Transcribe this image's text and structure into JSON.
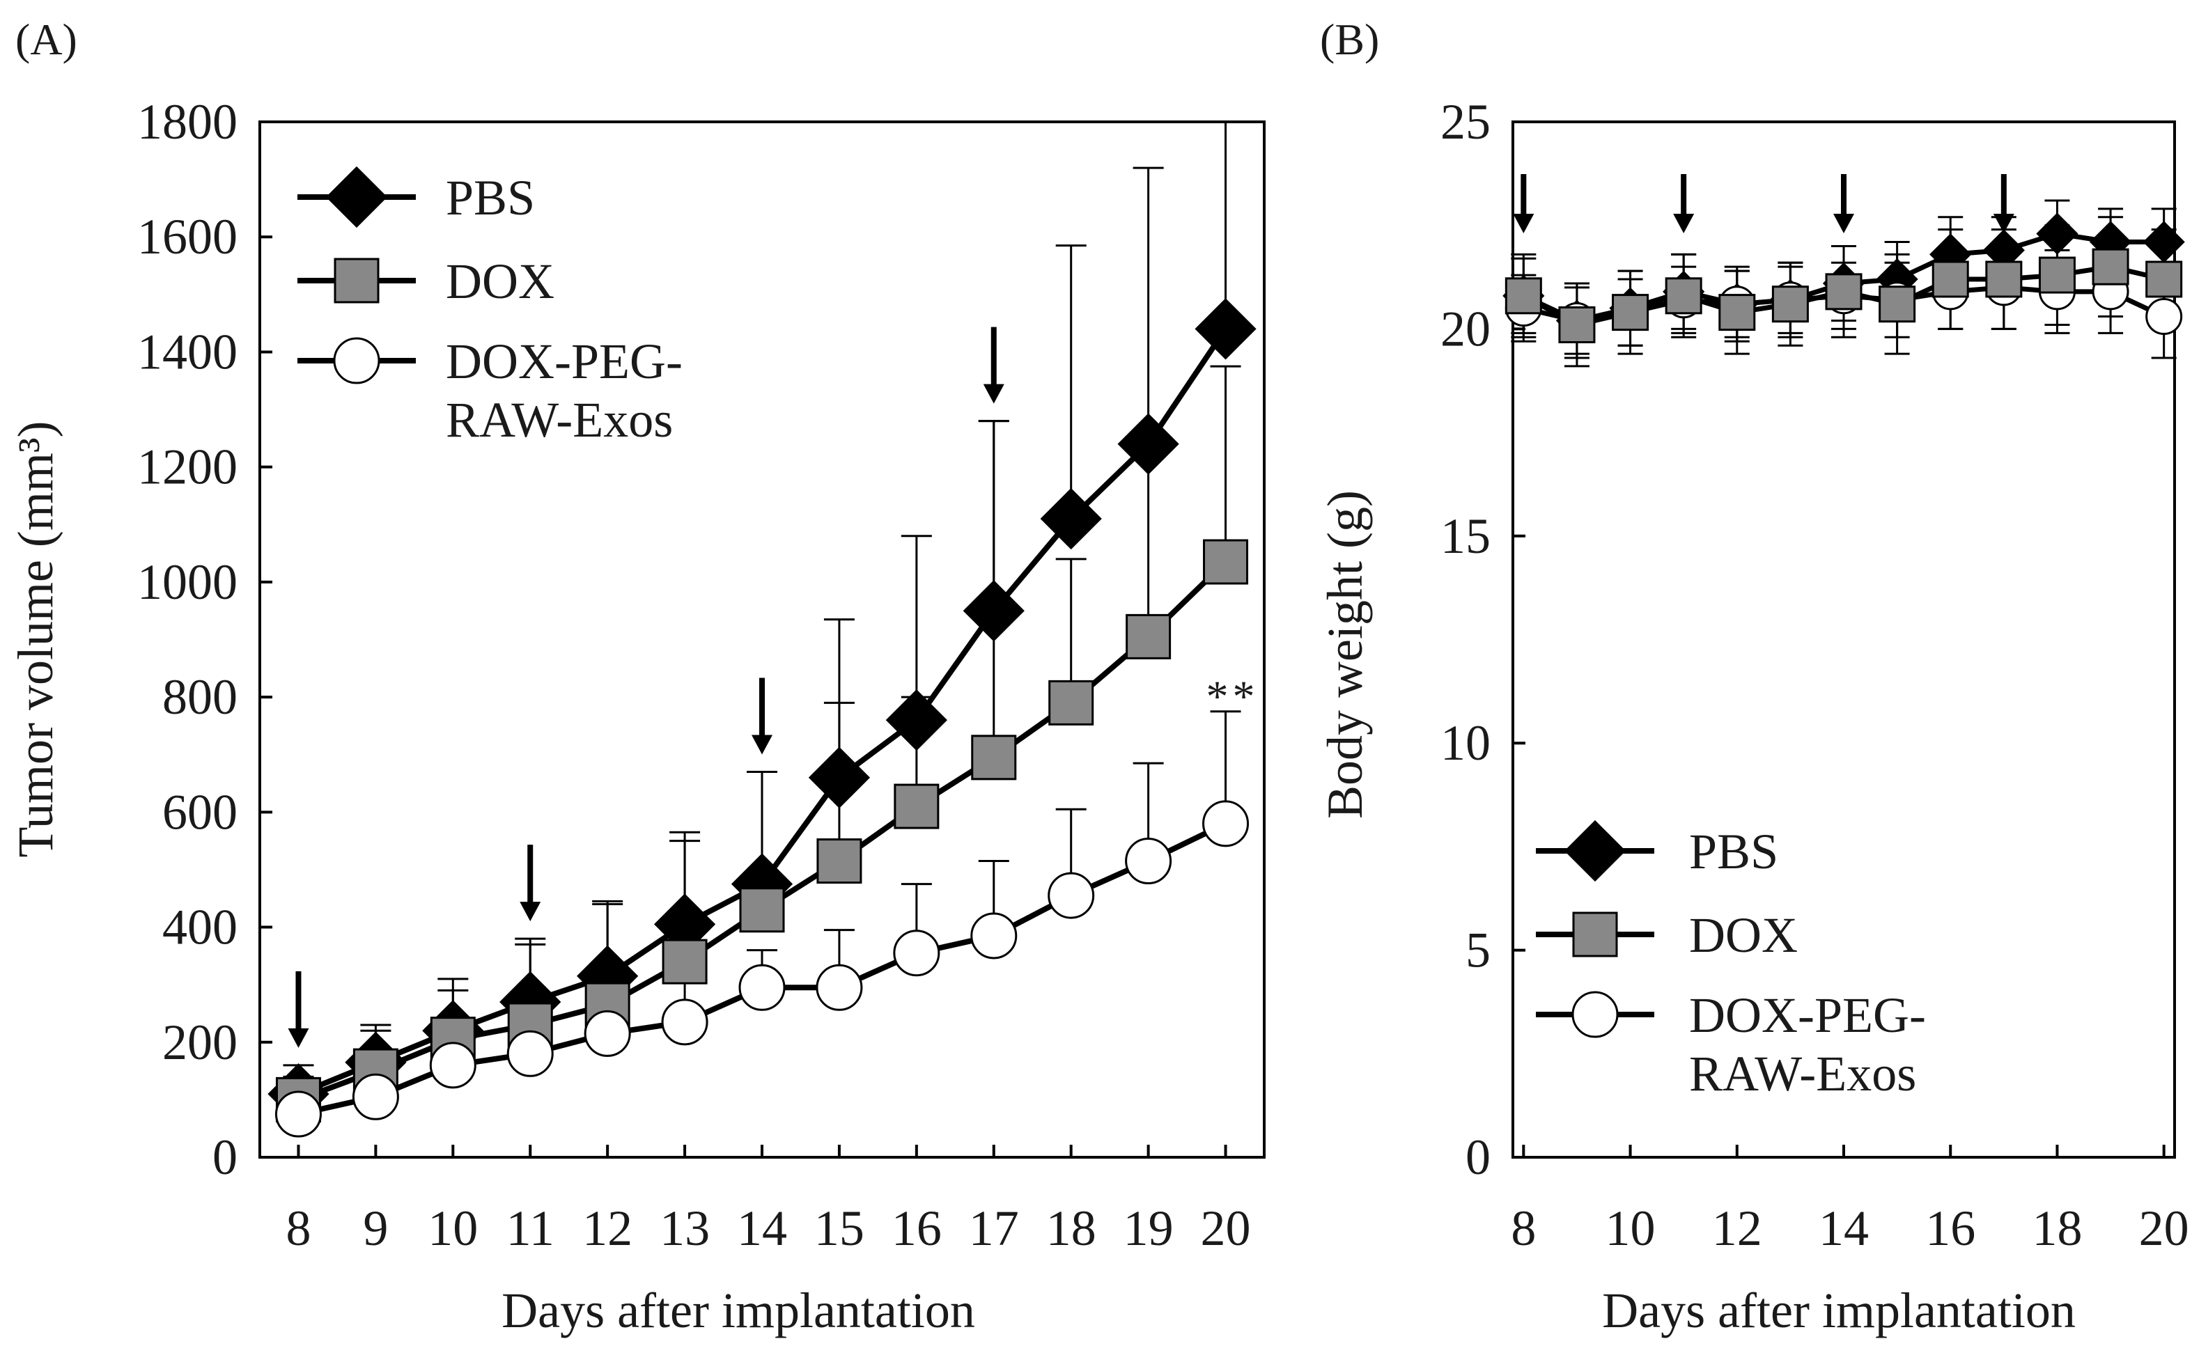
{
  "colors": {
    "pbs": "#000000",
    "dox": "#888888",
    "doxpeg": "#ffffff",
    "stroke": "#000000"
  },
  "panels": [
    {
      "id": "A",
      "label": "(A)",
      "ylabel": "Tumor volume (mm³)",
      "xlabel": "Days after implantation",
      "significance": "**",
      "x_ticks": [
        8,
        9,
        10,
        11,
        12,
        13,
        14,
        15,
        16,
        17,
        18,
        19,
        20
      ],
      "y_ticks": [
        0,
        200,
        400,
        600,
        800,
        1000,
        1200,
        1400,
        1600,
        1800
      ],
      "legend": [
        {
          "key": "pbs",
          "label": "PBS"
        },
        {
          "key": "dox",
          "label": "DOX"
        },
        {
          "key": "doxpeg",
          "label_lines": [
            "DOX-PEG-",
            "RAW-Exos"
          ]
        }
      ]
    },
    {
      "id": "B",
      "label": "(B)",
      "ylabel": "Body weight (g)",
      "xlabel": "Days after implantation",
      "x_ticks": [
        8,
        10,
        12,
        14,
        16,
        18,
        20
      ],
      "y_ticks": [
        0,
        5,
        10,
        15,
        20,
        25
      ],
      "legend": [
        {
          "key": "pbs",
          "label": "PBS"
        },
        {
          "key": "dox",
          "label": "DOX"
        },
        {
          "key": "doxpeg",
          "label_lines": [
            "DOX-PEG-",
            "RAW-Exos"
          ]
        }
      ]
    }
  ],
  "chart_data": [
    {
      "type": "line",
      "title": "(A)",
      "xlabel": "Days after implantation",
      "ylabel": "Tumor volume (mm³)",
      "xlim": [
        7.5,
        20.5
      ],
      "ylim": [
        0,
        1800
      ],
      "x": [
        8,
        9,
        10,
        11,
        12,
        13,
        14,
        15,
        16,
        17,
        18,
        19,
        20
      ],
      "dosing_days": [
        8,
        11,
        14,
        17
      ],
      "annotation": {
        "text": "**",
        "x": 20,
        "y": 830
      },
      "series": [
        {
          "name": "PBS",
          "key": "pbs",
          "marker": "diamond",
          "values": [
            110,
            165,
            220,
            270,
            315,
            405,
            475,
            660,
            760,
            950,
            1110,
            1240,
            1440
          ],
          "errors": [
            50,
            65,
            90,
            110,
            130,
            160,
            195,
            275,
            320,
            330,
            475,
            480,
            420
          ]
        },
        {
          "name": "DOX",
          "key": "dox",
          "marker": "square",
          "values": [
            100,
            150,
            205,
            230,
            265,
            340,
            430,
            515,
            610,
            695,
            790,
            905,
            1035
          ],
          "errors": [
            40,
            70,
            85,
            140,
            175,
            210,
            240,
            275,
            190,
            585,
            250,
            310,
            340
          ]
        },
        {
          "name": "DOX-PEG-RAW-Exos",
          "key": "doxpeg",
          "marker": "circle",
          "values": [
            75,
            105,
            160,
            180,
            215,
            235,
            295,
            295,
            355,
            385,
            455,
            515,
            580
          ],
          "errors": [
            45,
            60,
            70,
            75,
            85,
            95,
            65,
            100,
            120,
            130,
            150,
            170,
            195
          ]
        }
      ]
    },
    {
      "type": "line",
      "title": "(B)",
      "xlabel": "Days after implantation",
      "ylabel": "Body weight (g)",
      "xlim": [
        7.8,
        20.2
      ],
      "ylim": [
        0,
        25
      ],
      "x": [
        8,
        9,
        10,
        11,
        12,
        13,
        14,
        15,
        16,
        17,
        18,
        19,
        20
      ],
      "dosing_days": [
        8,
        11,
        14,
        17
      ],
      "series": [
        {
          "name": "PBS",
          "key": "pbs",
          "marker": "diamond",
          "values": [
            20.8,
            20.2,
            20.5,
            20.9,
            20.6,
            20.7,
            21.1,
            21.2,
            21.8,
            21.9,
            22.3,
            22.1,
            22.1
          ],
          "errors": [
            0.9,
            0.9,
            0.9,
            0.9,
            0.9,
            0.9,
            0.9,
            0.9,
            0.9,
            0.8,
            0.8,
            0.8,
            0.8
          ]
        },
        {
          "name": "DOX",
          "key": "dox",
          "marker": "square",
          "values": [
            20.8,
            20.1,
            20.4,
            20.8,
            20.4,
            20.6,
            20.9,
            20.6,
            21.2,
            21.2,
            21.3,
            21.5,
            21.2
          ],
          "errors": [
            1.0,
            1.0,
            1.0,
            1.0,
            1.0,
            1.0,
            1.1,
            1.2,
            1.2,
            1.2,
            1.2,
            1.2,
            1.2
          ]
        },
        {
          "name": "DOX-PEG-RAW-Exos",
          "key": "doxpeg",
          "marker": "circle",
          "values": [
            20.5,
            20.2,
            20.4,
            20.7,
            20.6,
            20.7,
            20.8,
            20.7,
            20.9,
            21.0,
            20.9,
            20.9,
            20.3
          ],
          "errors": [
            0.8,
            0.8,
            0.8,
            0.8,
            0.8,
            0.8,
            0.8,
            0.9,
            0.9,
            1.0,
            1.0,
            1.0,
            1.0
          ]
        }
      ]
    }
  ]
}
